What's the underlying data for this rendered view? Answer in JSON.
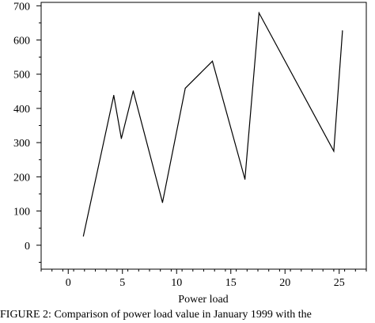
{
  "chart_data": {
    "type": "line",
    "xlabel": "Power load",
    "ylabel": "",
    "xlim": [
      -2.5,
      27.5
    ],
    "ylim": [
      -70,
      710
    ],
    "x_ticks": [
      "0",
      "5",
      "10",
      "15",
      "20",
      "25"
    ],
    "y_ticks": [
      "0",
      "100",
      "200",
      "300",
      "400",
      "500",
      "600",
      "700"
    ],
    "grid": false,
    "series": [
      {
        "x": [
          1.4,
          4.2,
          4.9,
          6.0,
          8.7,
          10.8,
          13.3,
          16.3,
          17.6,
          24.5,
          25.3
        ],
        "y": [
          27,
          438,
          312,
          451,
          125,
          459,
          538,
          193,
          679,
          275,
          627
        ]
      }
    ]
  },
  "caption": "FIGURE 2: Comparison of power load value in January 1999 with the"
}
